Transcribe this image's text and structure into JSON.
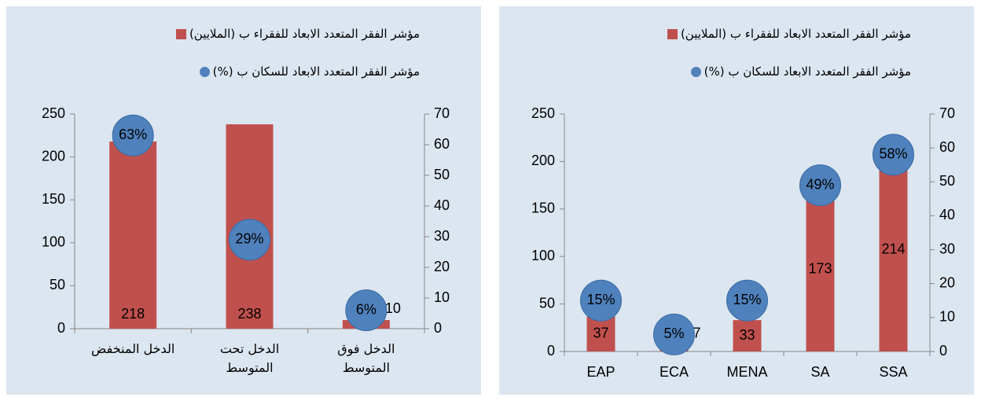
{
  "chart_data": [
    {
      "type": "bar",
      "categories": [
        "الدخل المنخفض",
        "الدخل تحت المتوسط",
        "الدخل فوق المتوسط"
      ],
      "series": [
        {
          "name": "مؤشر الفقر المتعدد الابعاد للفقراء ب (الملايين)",
          "color": "#c0504d",
          "values": [
            218,
            238,
            10
          ]
        },
        {
          "name": "مؤشر الفقر المتعدد الابعاد للسكان ب (%)",
          "color": "#4f81bd",
          "axis": "y2",
          "values": [
            63,
            29,
            6
          ],
          "value_labels": [
            "63%",
            "29%",
            "6%"
          ]
        }
      ],
      "ylim": [
        0,
        250
      ],
      "yticks": [
        0,
        50,
        100,
        150,
        200,
        250
      ],
      "y2lim": [
        0,
        70
      ],
      "y2ticks": [
        0,
        10,
        20,
        30,
        40,
        50,
        60,
        70
      ],
      "bar_label_position": "inside_base"
    },
    {
      "type": "bar",
      "categories": [
        "EAP",
        "ECA",
        "MENA",
        "SA",
        "SSA"
      ],
      "series": [
        {
          "name": "مؤشر الفقر المتعدد الابعاد للفقراء ب (الملايين)",
          "color": "#c0504d",
          "values": [
            37,
            7,
            33,
            173,
            214
          ]
        },
        {
          "name": "مؤشر الفقر المتعدد الابعاد للسكان ب (%)",
          "color": "#4f81bd",
          "axis": "y2",
          "values": [
            15,
            5,
            15,
            49,
            58
          ],
          "value_labels": [
            "15%",
            "5%",
            "15%",
            "49%",
            "58%"
          ]
        }
      ],
      "ylim": [
        0,
        250
      ],
      "yticks": [
        0,
        50,
        100,
        150,
        200,
        250
      ],
      "y2lim": [
        0,
        70
      ],
      "y2ticks": [
        0,
        10,
        20,
        30,
        40,
        50,
        60,
        70
      ],
      "bar_label_position": "center"
    }
  ]
}
